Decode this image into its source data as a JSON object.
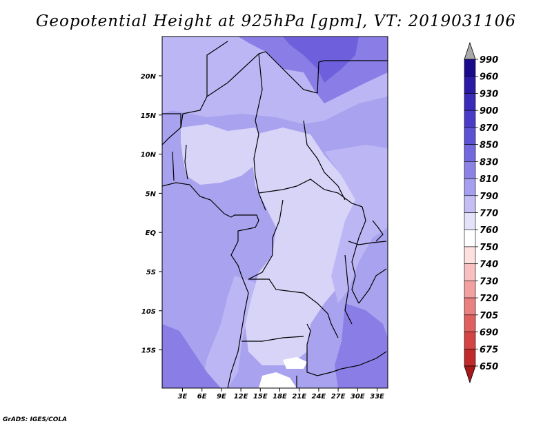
{
  "title": "Geopotential Height at 925hPa [gpm], VT: 2019031106",
  "credit": "GrADS: IGES/COLA",
  "map": {
    "lat_ticks": [
      "20N",
      "15N",
      "10N",
      "5N",
      "EQ",
      "5S",
      "10S",
      "15S"
    ],
    "lon_ticks": [
      "3E",
      "6E",
      "9E",
      "12E",
      "15E",
      "18E",
      "21E",
      "24E",
      "27E",
      "30E",
      "33E"
    ]
  },
  "colorbar": {
    "levels": [
      "990",
      "960",
      "930",
      "900",
      "870",
      "850",
      "830",
      "810",
      "790",
      "770",
      "760",
      "750",
      "740",
      "730",
      "720",
      "705",
      "690",
      "675",
      "650"
    ],
    "colors": [
      "#aaaaaa",
      "#1a0a8c",
      "#2b1aa6",
      "#3a2bb8",
      "#4a3cc8",
      "#5e52d4",
      "#7468de",
      "#8c82e6",
      "#a69eee",
      "#c4bef4",
      "#e4e2fa",
      "#ffffff",
      "#fde0e0",
      "#f8c0c0",
      "#f2a0a0",
      "#ea8080",
      "#e06060",
      "#d44444",
      "#c02a2a",
      "#a81818"
    ]
  },
  "colors": {
    "base_fill": "#a9a2ee",
    "light_fill": "#d7d4f8",
    "mid_fill": "#bdb6f4",
    "dark_fill": "#8a7ee6",
    "darkest_fill": "#6e60dc",
    "white_fill": "#ffffff"
  }
}
